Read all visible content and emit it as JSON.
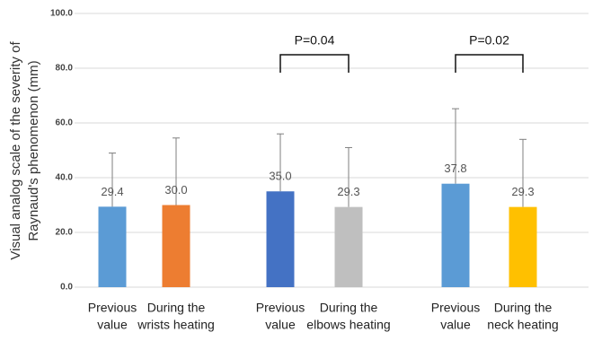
{
  "chart_data": {
    "type": "bar",
    "y_label": [
      "Visual analog scale of the severity of",
      "Raynaud's phenomenon (mm)"
    ],
    "categories": [
      [
        "Previous",
        "value"
      ],
      [
        "During the",
        "wrists heating"
      ],
      [
        "Previous",
        "value"
      ],
      [
        "During the",
        "elbows heating"
      ],
      [
        "Previous",
        "value"
      ],
      [
        "During the",
        "neck heating"
      ]
    ],
    "values": [
      29.4,
      30.0,
      35.0,
      29.3,
      37.8,
      29.3
    ],
    "value_labels": [
      "29.4",
      "30.0",
      "35.0",
      "29.3",
      "37.8",
      "29.3"
    ],
    "errors": [
      19.6,
      24.5,
      21.0,
      21.7,
      27.4,
      24.7
    ],
    "colors": [
      "#5b9bd5",
      "#ed7d31",
      "#4472c4",
      "#bfbfbf",
      "#5b9bd5",
      "#ffc000"
    ],
    "annotations": [
      "P=0.04",
      "P=0.02"
    ],
    "ylim": [
      0,
      100
    ],
    "yticks": [
      {
        "value": 0,
        "label": "0.0"
      },
      {
        "value": 20,
        "label": "20.0"
      },
      {
        "value": 40,
        "label": "40.0"
      },
      {
        "value": 60,
        "label": "60.0"
      },
      {
        "value": 80,
        "label": "80.0"
      },
      {
        "value": 100,
        "label": "100.0"
      }
    ],
    "grid": true
  }
}
